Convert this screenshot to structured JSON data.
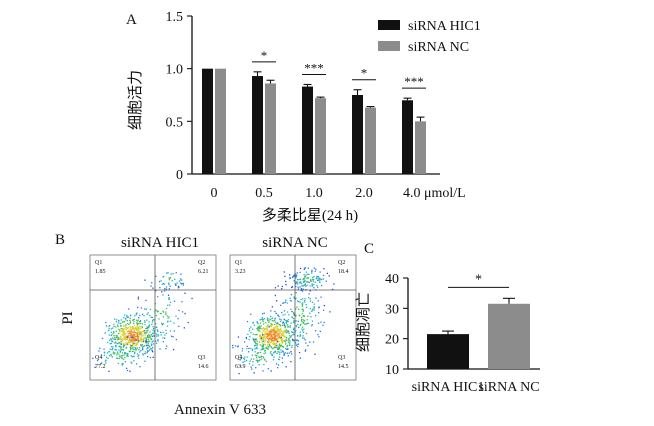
{
  "colors": {
    "hic1": "#111111",
    "nc": "#8c8c8c"
  },
  "chart_data": [
    {
      "panel": "A",
      "type": "bar",
      "categories": [
        "0",
        "0.5",
        "1.0",
        "2.0",
        "4.0"
      ],
      "unit": "μmol/L",
      "xlabel": "多柔比星(24 h)",
      "ylabel": "细胞活力",
      "ylim": [
        0,
        1.5
      ],
      "yticks": [
        "0",
        "0.5",
        "1.0",
        "1.5"
      ],
      "series": [
        {
          "name": "siRNA HIC1",
          "color": "#111111",
          "values": [
            1.0,
            0.93,
            0.83,
            0.75,
            0.7
          ],
          "errors": [
            0.0,
            0.04,
            0.02,
            0.05,
            0.02
          ]
        },
        {
          "name": "siRNA NC",
          "color": "#8c8c8c",
          "values": [
            1.0,
            0.86,
            0.72,
            0.63,
            0.5
          ],
          "errors": [
            0.0,
            0.03,
            0.01,
            0.01,
            0.04
          ]
        }
      ],
      "significance": [
        "",
        "*",
        "***",
        "*",
        "***"
      ],
      "legend": "top-right"
    },
    {
      "panel": "C",
      "type": "bar",
      "categories": [
        "siRNA HIC1",
        "siRNA NC"
      ],
      "ylabel": "细胞凋亡",
      "ylim": [
        10,
        40
      ],
      "yticks": [
        "10",
        "20",
        "30",
        "40"
      ],
      "values": [
        21.5,
        31.5
      ],
      "errors": [
        1.0,
        1.8
      ],
      "colors": [
        "#111111",
        "#8c8c8c"
      ],
      "significance": "*"
    }
  ],
  "flow": {
    "panel": "B",
    "xlabel": "Annexin V 633",
    "ylabel": "PI",
    "plots": [
      {
        "title": "siRNA HIC1",
        "q1_label": "Q1",
        "q1": "1.85",
        "q2_label": "Q2",
        "q2": "6.21",
        "q4_label": "Q4",
        "q4": "77.2",
        "q3_label": "Q3",
        "q3": "14.6"
      },
      {
        "title": "siRNA NC",
        "q1_label": "Q1",
        "q1": "3.23",
        "q2_label": "Q2",
        "q2": "18.4",
        "q4_label": "Q4",
        "q4": "63.9",
        "q3_label": "Q3",
        "q3": "14.5"
      }
    ]
  }
}
